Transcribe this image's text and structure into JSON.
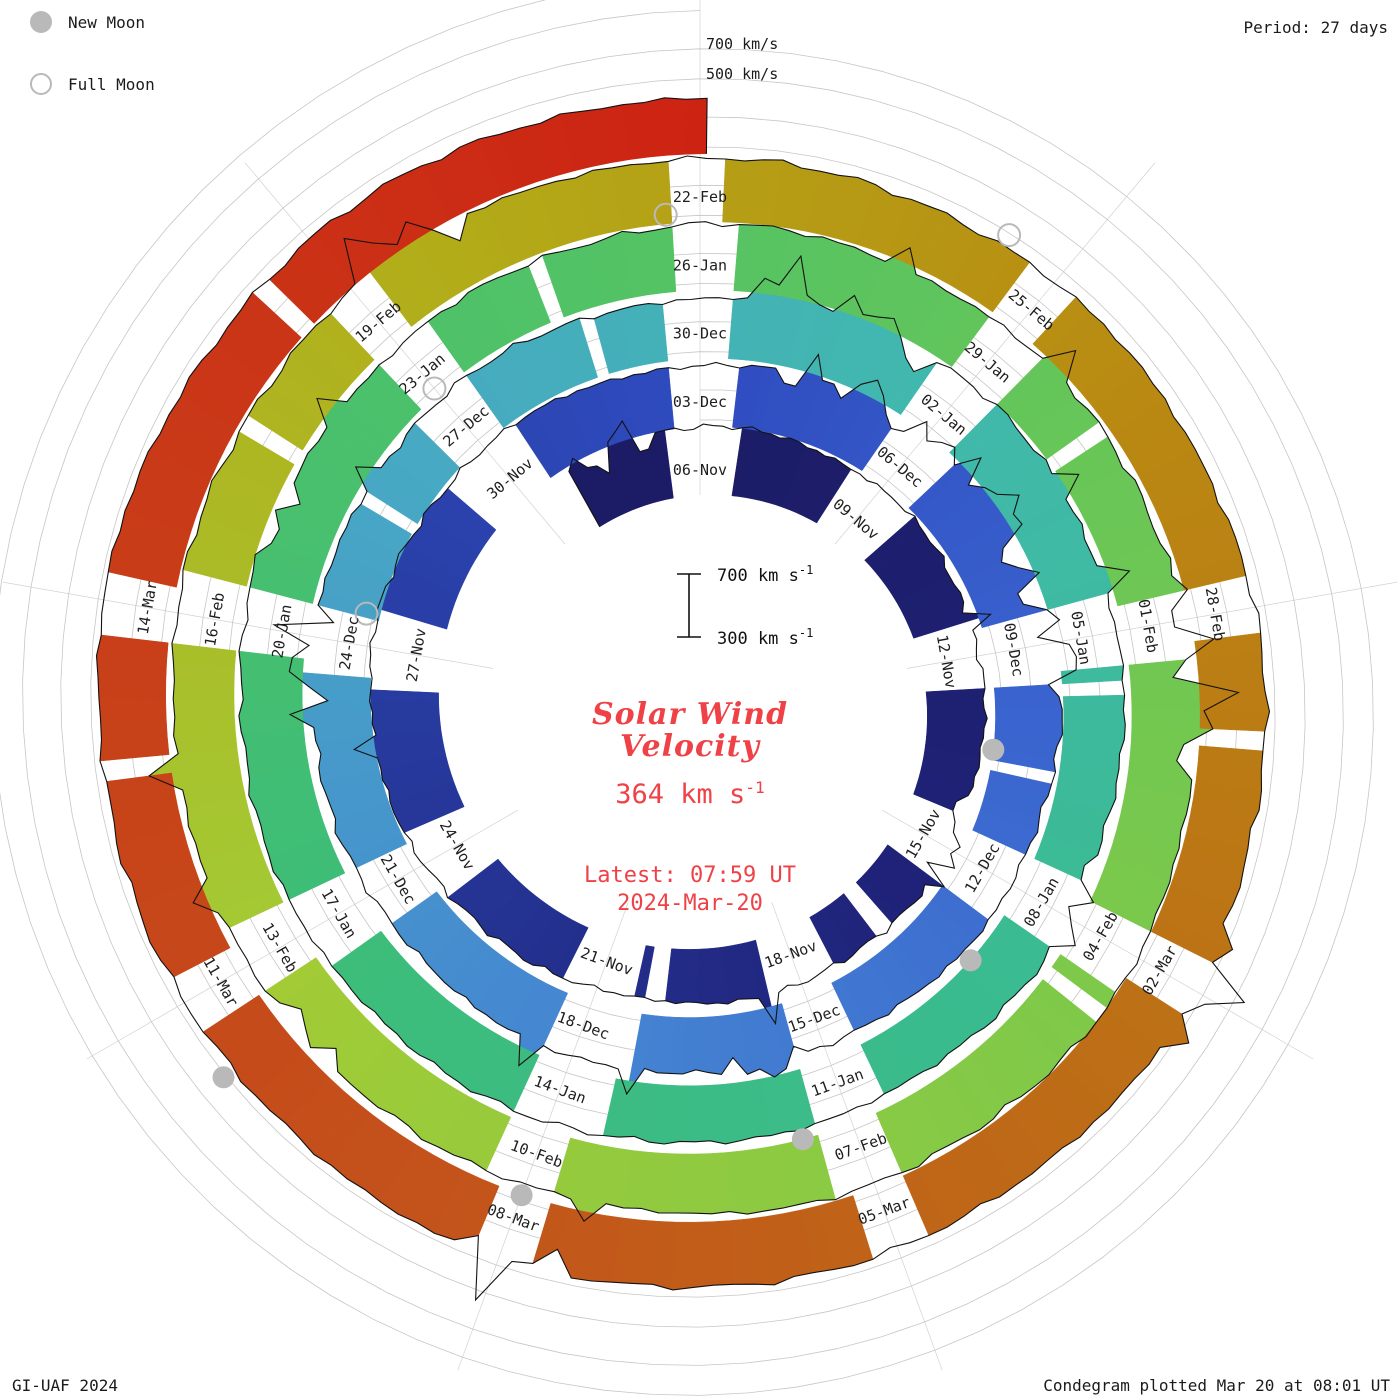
{
  "header": {
    "period_label": "Period: 27 days"
  },
  "legend": {
    "new_moon_label": "New Moon",
    "full_moon_label": "Full Moon",
    "moon_color": "#b9b9b9"
  },
  "footer": {
    "left": "GI-UAF 2024",
    "right": "Condegram plotted Mar 20 at 08:01 UT"
  },
  "axis": {
    "outer_700": "700 km/s",
    "outer_500": "500 km/s",
    "scalebar": {
      "top": "700",
      "bottom": "300",
      "unit": " km s",
      "sup": "-1"
    }
  },
  "center": {
    "title_line1": "Solar Wind",
    "title_line2": "Velocity",
    "value_text": "364 km s",
    "value_sup": "-1",
    "latest_line1": "Latest: 07:59 UT",
    "latest_line2": "2024-Mar-20",
    "text_color": "#ef4146"
  },
  "chart_data": {
    "type": "spiral_polar_time_series",
    "title": "Solar Wind Velocity",
    "units": "km/s",
    "period_days": 27,
    "start_date": "2023-11-06",
    "end_date": "2024-03-20",
    "latest_value": 364,
    "latest_time": "07:59 UT 2024-Mar-20",
    "radial_scale": {
      "ref_low": 300,
      "ref_high": 700,
      "outer_rings": [
        500,
        700
      ]
    },
    "tick_step_days": 3,
    "tick_labels": [
      "06-Nov",
      "09-Nov",
      "12-Nov",
      "15-Nov",
      "18-Nov",
      "21-Nov",
      "24-Nov",
      "27-Nov",
      "30-Nov",
      "03-Dec",
      "06-Dec",
      "09-Dec",
      "12-Dec",
      "15-Dec",
      "18-Dec",
      "21-Dec",
      "24-Dec",
      "27-Dec",
      "30-Dec",
      "02-Jan",
      "05-Jan",
      "08-Jan",
      "11-Jan",
      "14-Jan",
      "17-Jan",
      "20-Jan",
      "23-Jan",
      "26-Jan",
      "29-Jan",
      "01-Feb",
      "04-Feb",
      "07-Feb",
      "10-Feb",
      "13-Feb",
      "16-Feb",
      "19-Feb",
      "22-Feb",
      "25-Feb",
      "28-Feb",
      "02-Mar",
      "05-Mar",
      "08-Mar",
      "11-Mar",
      "14-Mar"
    ],
    "velocities_every_3_days": [
      455,
      430,
      385,
      360,
      370,
      355,
      420,
      470,
      430,
      405,
      430,
      455,
      385,
      360,
      385,
      370,
      400,
      415,
      395,
      435,
      405,
      380,
      370,
      395,
      405,
      420,
      400,
      440,
      415,
      410,
      450,
      425,
      380,
      395,
      415,
      440,
      420,
      405,
      430,
      440,
      425,
      450,
      435,
      460,
      420,
      364
    ],
    "moon_events": [
      {
        "type": "new",
        "date": "2023-11-13",
        "t": 7.4
      },
      {
        "type": "full",
        "date": "2023-11-27",
        "t": 21.4
      },
      {
        "type": "new",
        "date": "2023-12-12",
        "t": 37.0
      },
      {
        "type": "full",
        "date": "2023-12-27",
        "t": 51.0
      },
      {
        "type": "new",
        "date": "2024-01-11",
        "t": 66.5
      },
      {
        "type": "full",
        "date": "2024-01-25",
        "t": 80.7
      },
      {
        "type": "new",
        "date": "2024-02-09",
        "t": 96.0
      },
      {
        "type": "full",
        "date": "2024-02-24",
        "t": 110.5
      },
      {
        "type": "new",
        "date": "2024-03-10",
        "t": 125.4
      }
    ],
    "color_scale": [
      [
        0,
        "#1c1c66"
      ],
      [
        10,
        "#1f2278"
      ],
      [
        20,
        "#273a9e"
      ],
      [
        27,
        "#2f4cc0"
      ],
      [
        34,
        "#3a64cf"
      ],
      [
        42,
        "#4585d2"
      ],
      [
        50,
        "#47a8c4"
      ],
      [
        57,
        "#41b9ac"
      ],
      [
        64,
        "#3abb90"
      ],
      [
        72,
        "#3dbd78"
      ],
      [
        81,
        "#55c363"
      ],
      [
        90,
        "#7cc94b"
      ],
      [
        99,
        "#a3cb35"
      ],
      [
        106,
        "#b3ab18"
      ],
      [
        112,
        "#b98a12"
      ],
      [
        118,
        "#bd6d16"
      ],
      [
        124,
        "#c4511b"
      ],
      [
        130,
        "#c93a18"
      ],
      [
        135,
        "#cd2313"
      ]
    ],
    "grid_color": "#c6c6c6",
    "outline_color": "#121212",
    "noise_clusters": [
      [
        -2.2,
        -0.8
      ],
      [
        8.3,
        9.6
      ],
      [
        28.0,
        33.5
      ],
      [
        39.2,
        40.2
      ],
      [
        47.0,
        48.3
      ],
      [
        54.5,
        56.5
      ],
      [
        62.3,
        63.2
      ],
      [
        75.6,
        76.4
      ],
      [
        86.5,
        88.3
      ],
      [
        97.8,
        98.5
      ],
      [
        105.2,
        106.0
      ],
      [
        116.6,
        117.4
      ],
      [
        122.6,
        123.3
      ]
    ],
    "data_gaps": [
      [
        10.5,
        14
      ],
      [
        14.2,
        20
      ],
      [
        23.4,
        12
      ],
      [
        34.6,
        16
      ],
      [
        41.5,
        22
      ],
      [
        44.9,
        12
      ],
      [
        49.6,
        18
      ],
      [
        52.8,
        12
      ],
      [
        60.6,
        16
      ],
      [
        64.4,
        10
      ],
      [
        68.6,
        18
      ],
      [
        72.1,
        12
      ],
      [
        79.5,
        14
      ],
      [
        85.2,
        10
      ],
      [
        90.6,
        16
      ],
      [
        99.5,
        12
      ],
      [
        103.6,
        14
      ],
      [
        109.4,
        12
      ],
      [
        115.0,
        16
      ],
      [
        120.5,
        12
      ],
      [
        127.8,
        10
      ],
      [
        131.5,
        14
      ]
    ]
  }
}
